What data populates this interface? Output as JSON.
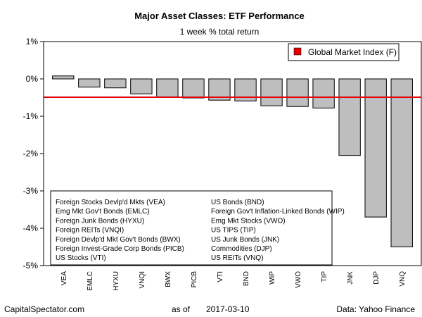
{
  "chart_data": {
    "type": "bar",
    "title": "Major Asset Classes: ETF Performance",
    "subtitle": "1 week % total return",
    "ylim": [
      -5,
      1
    ],
    "yticks": [
      1,
      0,
      -1,
      -2,
      -3,
      -4,
      -5
    ],
    "ytick_labels": [
      "1%",
      "0%",
      "-1%",
      "-2%",
      "-3%",
      "-4%",
      "-5%"
    ],
    "categories": [
      "VEA",
      "EMLC",
      "HYXU",
      "VNQI",
      "BWX",
      "PICB",
      "VTI",
      "BND",
      "WIP",
      "VWO",
      "TIP",
      "JNK",
      "DJP",
      "VNQ"
    ],
    "values": [
      0.08,
      -0.22,
      -0.24,
      -0.4,
      -0.48,
      -0.51,
      -0.57,
      -0.59,
      -0.72,
      -0.74,
      -0.78,
      -2.05,
      -3.7,
      -4.5
    ],
    "bar_color": "#bebebe",
    "reference_line": {
      "value": -0.49,
      "color": "#e00000"
    },
    "legend": {
      "label": "Global Market Index (F)",
      "color": "#e00000",
      "position": "top-right"
    },
    "key_entries": [
      "Foreign Stocks Devlp'd Mkts (VEA)",
      "Emg Mkt Gov't Bonds (EMLC)",
      "Foreign Junk Bonds (HYXU)",
      "Foreign REITs (VNQI)",
      "Foreign Devlp'd Mkt Gov't Bonds (BWX)",
      "Foreign Invest-Grade Corp Bonds (PICB)",
      "US Stocks (VTI)",
      "US Bonds (BND)",
      "Foreign Gov't Inflation-Linked Bonds (WIP)",
      "Emg Mkt Stocks (VWO)",
      "US TIPS (TIP)",
      "US Junk Bonds (JNK)",
      "Commodities (DJP)",
      "US REITs (VNQ)"
    ]
  },
  "footer": {
    "source_left": "CapitalSpectator.com",
    "as_of_label": "as of",
    "date": "2017-03-10",
    "source_right": "Data: Yahoo Finance"
  }
}
